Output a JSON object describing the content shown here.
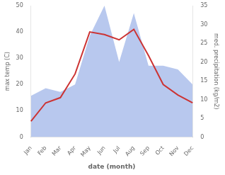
{
  "chart_data": {
    "type": "line",
    "categories": [
      "Jan",
      "Feb",
      "Mar",
      "Apr",
      "May",
      "Jun",
      "Jul",
      "Aug",
      "Sep",
      "Oct",
      "Nov",
      "Dec"
    ],
    "xlabel": "date (month)",
    "ylabel": "max temp (C)",
    "y2label": "med. precipitation (kg/m2)",
    "series": [
      {
        "type": "line",
        "color": "#cc3333",
        "values": [
          6,
          13,
          15,
          24,
          40,
          39,
          37,
          41,
          31,
          20,
          16,
          13
        ]
      },
      {
        "type": "area",
        "color": "#b8c8ee",
        "axis": "y2",
        "values": [
          11,
          13,
          12,
          14,
          27,
          35,
          20,
          33,
          19,
          19,
          18,
          14
        ]
      }
    ],
    "ylim": [
      0,
      50
    ],
    "yticks": [
      0,
      10,
      20,
      30,
      40,
      50
    ],
    "y2lim": [
      0,
      35
    ],
    "y2ticks": [
      0,
      5,
      10,
      15,
      20,
      25,
      30,
      35
    ],
    "grid": false
  }
}
